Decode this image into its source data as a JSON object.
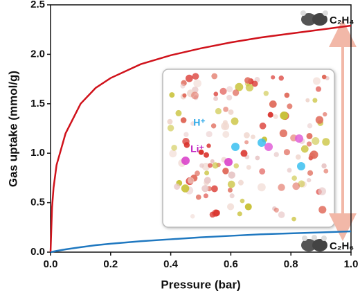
{
  "chart_data": {
    "type": "line",
    "xlabel": "Pressure (bar)",
    "ylabel": "Gas uptake (mmol/g)",
    "x": [
      0,
      0.005,
      0.01,
      0.02,
      0.05,
      0.1,
      0.15,
      0.2,
      0.3,
      0.4,
      0.5,
      0.6,
      0.7,
      0.8,
      0.9,
      1.0
    ],
    "series": [
      {
        "name": "C₂H₄",
        "color": "#d0121b",
        "values": [
          0,
          0.45,
          0.65,
          0.88,
          1.2,
          1.5,
          1.66,
          1.76,
          1.9,
          1.99,
          2.06,
          2.12,
          2.17,
          2.21,
          2.25,
          2.29
        ]
      },
      {
        "name": "C₂H₆",
        "color": "#1f78c0",
        "values": [
          0,
          0.003,
          0.006,
          0.012,
          0.028,
          0.05,
          0.07,
          0.085,
          0.11,
          0.13,
          0.15,
          0.165,
          0.18,
          0.19,
          0.2,
          0.21
        ]
      }
    ],
    "xlim": [
      0,
      1.0
    ],
    "xticks": [
      {
        "value": 0,
        "label": "0.0"
      },
      0.2,
      0.4,
      0.6,
      0.8,
      {
        "value": 1,
        "label": "1.0"
      }
    ],
    "ylim": [
      0,
      2.5
    ],
    "yticks": [
      {
        "value": 0,
        "label": "0.0"
      },
      0.5,
      {
        "value": 1,
        "label": "1.0"
      },
      1.5,
      {
        "value": 2,
        "label": "2.0"
      },
      2.5
    ],
    "annotations": [
      "H⁺",
      "Li⁺"
    ]
  }
}
